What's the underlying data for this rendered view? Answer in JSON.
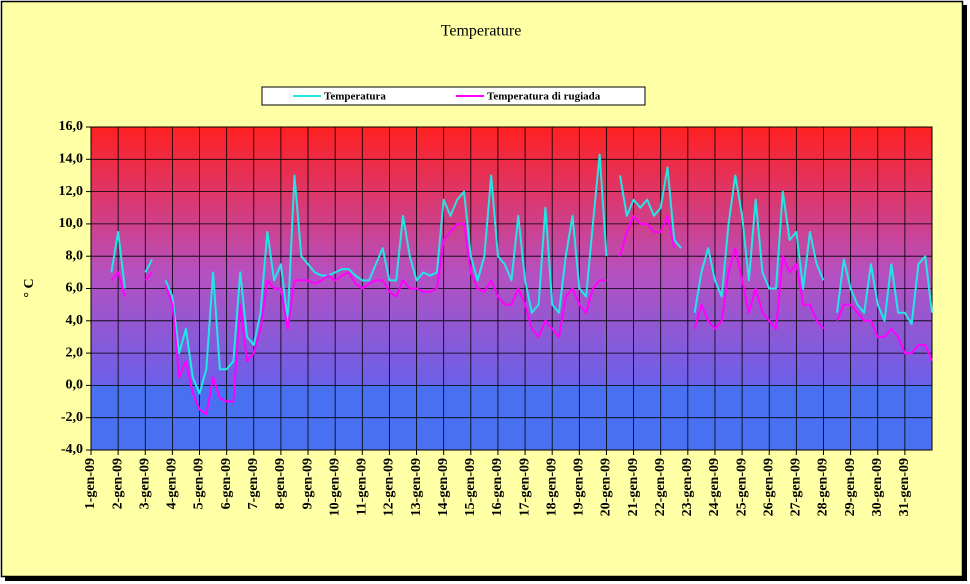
{
  "chart_data": {
    "type": "line",
    "title": "Temperature",
    "y_label": "° C",
    "categories": [
      "1-gen-09",
      null,
      null,
      null,
      "2-gen-09",
      null,
      null,
      null,
      "3-gen-09",
      null,
      null,
      null,
      "4-gen-09",
      null,
      null,
      null,
      "5-gen-09",
      null,
      null,
      null,
      "6-gen-09",
      null,
      null,
      null,
      "7-gen-09",
      null,
      null,
      null,
      "8-gen-09",
      null,
      null,
      null,
      "9-gen-09",
      null,
      null,
      null,
      "10-gen-09",
      null,
      null,
      null,
      "11-gen-09",
      null,
      null,
      null,
      "12-gen-09",
      null,
      null,
      null,
      "13-gen-09",
      null,
      null,
      null,
      "14-gen-09",
      null,
      null,
      null,
      "15-gen-09",
      null,
      null,
      null,
      "16-gen-09",
      null,
      null,
      null,
      "17-gen-09",
      null,
      null,
      null,
      "18-gen-09",
      null,
      null,
      null,
      "19-gen-09",
      null,
      null,
      null,
      "20-gen-09",
      null,
      null,
      null,
      "21-gen-09",
      null,
      null,
      null,
      "22-gen-09",
      null,
      null,
      null,
      "23-gen-09",
      null,
      null,
      null,
      "24-gen-09",
      null,
      null,
      null,
      "25-gen-09",
      null,
      null,
      null,
      "26-gen-09",
      null,
      null,
      null,
      "27-gen-09",
      null,
      null,
      null,
      "28-gen-09",
      null,
      null,
      null,
      "29-gen-09",
      null,
      null,
      null,
      "30-gen-09",
      null,
      null,
      null,
      "31-gen-09",
      null,
      null,
      null,
      null
    ],
    "series": [
      {
        "name": "Temperatura",
        "color": "#22e6e6",
        "values": [
          null,
          null,
          null,
          7,
          9.5,
          6,
          null,
          null,
          7,
          7.8,
          null,
          6.5,
          5.5,
          2,
          3.5,
          0.5,
          -0.5,
          1,
          7,
          1,
          1,
          1.5,
          7,
          3,
          2.5,
          4.5,
          9.5,
          6.5,
          7.5,
          4,
          13,
          8,
          7.5,
          7,
          6.8,
          6.8,
          7,
          7.2,
          7.2,
          6.8,
          6.5,
          6.5,
          7.5,
          8.5,
          6.5,
          6.5,
          10.5,
          8,
          6.5,
          7,
          6.8,
          7,
          11.5,
          10.5,
          11.5,
          12,
          8,
          6.5,
          8,
          13,
          8,
          7.5,
          6.5,
          10.5,
          6.5,
          4.5,
          5,
          11,
          5,
          4.5,
          8,
          10.5,
          6,
          5.5,
          10,
          14.3,
          8,
          null,
          13,
          10.5,
          11.5,
          11,
          11.5,
          10.5,
          11,
          13.5,
          9,
          8.5,
          null,
          4.5,
          7,
          8.5,
          6.5,
          5.5,
          10,
          13,
          10.5,
          6.5,
          11.5,
          7,
          6,
          6,
          12,
          9,
          9.5,
          6,
          9.5,
          7.5,
          6.5,
          null,
          4.5,
          7.8,
          6,
          5,
          4.5,
          7.5,
          5,
          4,
          7.5,
          4.5,
          4.5,
          3.8,
          7.5,
          8,
          4.5
        ]
      },
      {
        "name": "Temperatura di rugiada",
        "color": "#ff00ff",
        "values": [
          null,
          null,
          null,
          6.5,
          7,
          5.5,
          null,
          null,
          6.5,
          7,
          null,
          6.2,
          5,
          0.5,
          1.5,
          -0.5,
          -1.5,
          -1.8,
          0.5,
          -0.8,
          -1,
          -1,
          5,
          1.5,
          2,
          3.5,
          6.5,
          6,
          6,
          3.5,
          6.5,
          6.5,
          6.5,
          6.3,
          6.5,
          6.8,
          6.5,
          6.8,
          7,
          6.3,
          6,
          6.3,
          6.5,
          6.5,
          5.8,
          5.5,
          6.5,
          6,
          6,
          5.8,
          5.8,
          6,
          9,
          9.5,
          10,
          10,
          7,
          6,
          5.8,
          6.5,
          5.5,
          5,
          5,
          6,
          5,
          3.5,
          3,
          4,
          3.5,
          3,
          5.5,
          6,
          5,
          4.5,
          6,
          6.5,
          6.5,
          null,
          8,
          9.5,
          10.5,
          10,
          10,
          9.5,
          9.5,
          10.5,
          8.5,
          null,
          null,
          3.5,
          5,
          4,
          3.5,
          4,
          7,
          8.5,
          6.5,
          4.5,
          6,
          4.5,
          4,
          3.5,
          8,
          7,
          7.5,
          5,
          5,
          4,
          3.5,
          null,
          4,
          5,
          5,
          4.5,
          4,
          4,
          3,
          3,
          3.5,
          3,
          2,
          2,
          2.5,
          2.5,
          1.5
        ]
      }
    ],
    "ylim": [
      -4,
      16
    ],
    "yticks": [
      {
        "value": -4,
        "label": "-4,0"
      },
      {
        "value": -2,
        "label": "-2,0"
      },
      {
        "value": 0,
        "label": "0,0"
      },
      {
        "value": 2,
        "label": "2,0"
      },
      {
        "value": 4,
        "label": "4,0"
      },
      {
        "value": 6,
        "label": "6,0"
      },
      {
        "value": 8,
        "label": "8,0"
      },
      {
        "value": 10,
        "label": "10,0"
      },
      {
        "value": 12,
        "label": "12,0"
      },
      {
        "value": 14,
        "label": "14,0"
      },
      {
        "value": 16,
        "label": "16,0"
      }
    ],
    "grid": true,
    "legend": "top"
  }
}
